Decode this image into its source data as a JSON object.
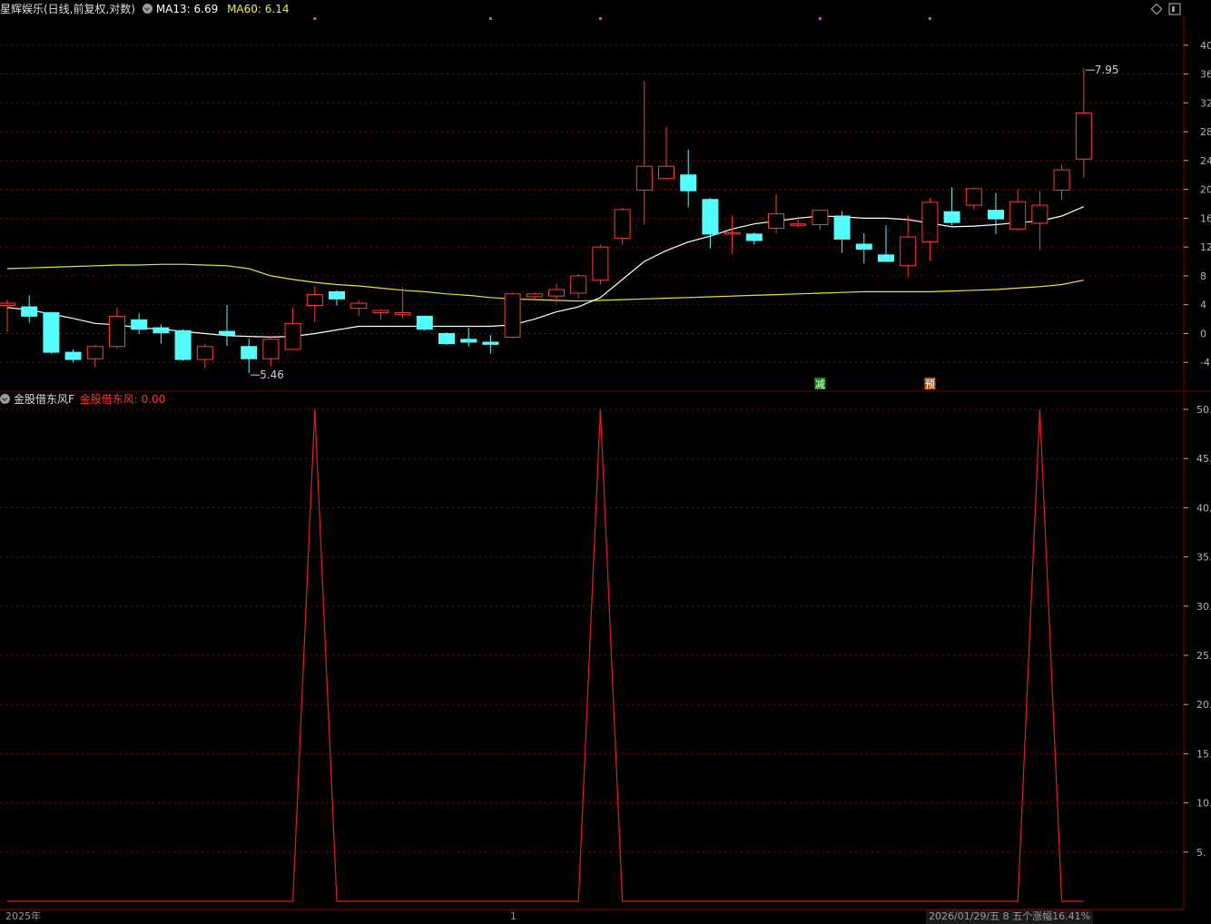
{
  "header": {
    "title": "星辉娱乐(日线,前复权,对数)",
    "ma13_label": "MA13: 6.69",
    "ma60_label": "MA60: 6.14"
  },
  "indicator": {
    "title": "金股借东风F",
    "value_label": "金股借东风: 0.00"
  },
  "footer": {
    "year_label": "2025年",
    "month_label": "1",
    "status": "2026/01/29/五 8 五个涨幅16.41%"
  },
  "colors": {
    "background": "#000000",
    "up": "#ff3c3c",
    "down": "#54fcfc",
    "ma13": "#ffffff",
    "ma60": "#e6e632",
    "indicator_line": "#e02020",
    "axis": "#b4b4b4",
    "grid": "#8c0000"
  },
  "icons": [
    "collapse-dropdown-icon",
    "diamond-icon",
    "restore-window-icon"
  ],
  "chart_data": [
    {
      "type": "candlestick",
      "title": "星辉娱乐(日线,前复权,对数)",
      "y_tick_labels": [
        "40",
        "36",
        "32",
        "28",
        "24",
        "20",
        "16",
        "12",
        "8",
        "4",
        "0",
        "-4"
      ],
      "y_ticks": [
        40,
        36,
        32,
        28,
        24,
        20,
        16,
        12,
        8,
        4,
        0,
        -4
      ],
      "ylim": [
        -8,
        44
      ],
      "grid": true,
      "annotations": [
        {
          "text": "7.95",
          "index": 49,
          "type": "high"
        },
        {
          "text": "5.46",
          "index": 11,
          "type": "low"
        }
      ],
      "signals": [
        {
          "text": "减",
          "index": 37,
          "color": "#1e7d1e"
        },
        {
          "text": "预",
          "index": 42,
          "color": "#b45a14"
        }
      ],
      "markers": [
        14,
        22,
        27,
        37,
        42
      ],
      "candles": [
        {
          "o": 3.9,
          "h": 4.7,
          "l": 0.2,
          "c": 4.2
        },
        {
          "o": 3.7,
          "h": 5.3,
          "l": 1.5,
          "c": 2.4
        },
        {
          "o": 2.9,
          "h": 3.0,
          "l": -2.8,
          "c": -2.6
        },
        {
          "o": -2.6,
          "h": -2.2,
          "l": -4.0,
          "c": -3.6
        },
        {
          "o": -3.5,
          "h": -1.6,
          "l": -4.7,
          "c": -1.8
        },
        {
          "o": -1.8,
          "h": 3.6,
          "l": -2.1,
          "c": 2.4
        },
        {
          "o": 1.9,
          "h": 2.8,
          "l": -0.1,
          "c": 0.6
        },
        {
          "o": 0.8,
          "h": 1.3,
          "l": -1.4,
          "c": 0.1
        },
        {
          "o": 0.4,
          "h": 0.6,
          "l": -3.8,
          "c": -3.6
        },
        {
          "o": -3.6,
          "h": -1.4,
          "l": -4.8,
          "c": -1.8
        },
        {
          "o": 0.3,
          "h": 4.0,
          "l": -1.7,
          "c": -0.2
        },
        {
          "o": -1.8,
          "h": -0.7,
          "l": -5.5,
          "c": -3.5
        },
        {
          "o": -3.5,
          "h": -0.3,
          "l": -4.5,
          "c": -0.8
        },
        {
          "o": -2.2,
          "h": 3.6,
          "l": -2.3,
          "c": 1.4
        },
        {
          "o": 3.9,
          "h": 6.6,
          "l": 1.6,
          "c": 5.4
        },
        {
          "o": 5.8,
          "h": 6.0,
          "l": 3.9,
          "c": 4.8
        },
        {
          "o": 3.5,
          "h": 4.6,
          "l": 2.4,
          "c": 4.2
        },
        {
          "o": 2.9,
          "h": 3.4,
          "l": 1.9,
          "c": 3.2
        },
        {
          "o": 2.6,
          "h": 6.4,
          "l": 2.1,
          "c": 2.9
        },
        {
          "o": 2.4,
          "h": 2.5,
          "l": 0.4,
          "c": 0.6
        },
        {
          "o": 0.0,
          "h": 0.2,
          "l": -1.6,
          "c": -1.4
        },
        {
          "o": -0.8,
          "h": 0.8,
          "l": -1.8,
          "c": -1.2
        },
        {
          "o": -1.2,
          "h": -0.2,
          "l": -2.8,
          "c": -1.5
        },
        {
          "o": -0.5,
          "h": 5.7,
          "l": -0.7,
          "c": 5.5
        },
        {
          "o": 5.1,
          "h": 5.7,
          "l": 4.6,
          "c": 5.5
        },
        {
          "o": 5.2,
          "h": 6.9,
          "l": 4.2,
          "c": 6.1
        },
        {
          "o": 5.6,
          "h": 8.3,
          "l": 4.9,
          "c": 8.0
        },
        {
          "o": 7.4,
          "h": 12.3,
          "l": 6.8,
          "c": 12.0
        },
        {
          "o": 13.2,
          "h": 17.4,
          "l": 12.3,
          "c": 17.2
        },
        {
          "o": 19.9,
          "h": 35.0,
          "l": 15.1,
          "c": 23.2
        },
        {
          "o": 21.5,
          "h": 28.7,
          "l": 21.3,
          "c": 23.2
        },
        {
          "o": 22.0,
          "h": 25.5,
          "l": 17.5,
          "c": 19.8
        },
        {
          "o": 18.6,
          "h": 18.8,
          "l": 11.8,
          "c": 13.8
        },
        {
          "o": 13.9,
          "h": 16.3,
          "l": 11.1,
          "c": 14.0
        },
        {
          "o": 13.8,
          "h": 14.0,
          "l": 12.3,
          "c": 12.9
        },
        {
          "o": 14.6,
          "h": 19.3,
          "l": 13.9,
          "c": 16.6
        },
        {
          "o": 15.1,
          "h": 16.2,
          "l": 14.7,
          "c": 15.2
        },
        {
          "o": 15.1,
          "h": 17.1,
          "l": 14.4,
          "c": 17.1
        },
        {
          "o": 16.3,
          "h": 17.0,
          "l": 11.2,
          "c": 13.1
        },
        {
          "o": 12.4,
          "h": 13.9,
          "l": 9.7,
          "c": 11.7
        },
        {
          "o": 10.9,
          "h": 15.0,
          "l": 10.4,
          "c": 10.0
        },
        {
          "o": 9.4,
          "h": 16.4,
          "l": 7.8,
          "c": 13.4
        },
        {
          "o": 12.7,
          "h": 18.8,
          "l": 10.1,
          "c": 18.2
        },
        {
          "o": 16.9,
          "h": 20.3,
          "l": 15.0,
          "c": 15.4
        },
        {
          "o": 17.8,
          "h": 20.3,
          "l": 17.2,
          "c": 20.1
        },
        {
          "o": 17.1,
          "h": 19.5,
          "l": 13.8,
          "c": 15.9
        },
        {
          "o": 14.5,
          "h": 20.0,
          "l": 14.3,
          "c": 18.3
        },
        {
          "o": 15.3,
          "h": 19.8,
          "l": 11.6,
          "c": 17.8
        },
        {
          "o": 19.9,
          "h": 23.4,
          "l": 18.5,
          "c": 22.7
        },
        {
          "o": 24.2,
          "h": 36.8,
          "l": 21.6,
          "c": 30.6
        }
      ],
      "ma13": [
        3.6,
        3.3,
        2.7,
        2.1,
        1.4,
        1.2,
        0.8,
        0.6,
        0.3,
        0.0,
        -0.3,
        -0.4,
        -0.5,
        -0.4,
        0.0,
        0.5,
        1.0,
        1.0,
        1.0,
        1.0,
        1.0,
        1.0,
        1.0,
        1.2,
        2.0,
        3.0,
        3.7,
        5.0,
        7.5,
        10.0,
        11.5,
        12.7,
        13.5,
        14.5,
        15.2,
        15.6,
        16.0,
        16.3,
        16.2,
        16.0,
        16.0,
        15.8,
        15.3,
        14.8,
        14.9,
        15.1,
        15.4,
        15.6,
        16.3,
        17.6
      ],
      "ma60": [
        9.0,
        9.1,
        9.2,
        9.3,
        9.4,
        9.5,
        9.5,
        9.6,
        9.6,
        9.5,
        9.4,
        9.0,
        8.0,
        7.5,
        7.1,
        6.8,
        6.6,
        6.3,
        6.0,
        5.8,
        5.5,
        5.3,
        5.0,
        4.8,
        4.7,
        4.6,
        4.5,
        4.6,
        4.7,
        4.8,
        4.9,
        5.0,
        5.1,
        5.2,
        5.3,
        5.4,
        5.5,
        5.6,
        5.7,
        5.8,
        5.8,
        5.8,
        5.8,
        5.9,
        6.0,
        6.1,
        6.3,
        6.5,
        6.8,
        7.4
      ]
    },
    {
      "type": "line",
      "title": "金股借东风F",
      "series": [
        {
          "name": "金股借东风",
          "values": [
            0,
            0,
            0,
            0,
            0,
            0,
            0,
            0,
            0,
            0,
            0,
            0,
            0,
            0,
            50,
            0,
            0,
            0,
            0,
            0,
            0,
            0,
            0,
            0,
            0,
            0,
            0,
            50,
            0,
            0,
            0,
            0,
            0,
            0,
            0,
            0,
            0,
            0,
            0,
            0,
            0,
            0,
            0,
            0,
            0,
            0,
            0,
            50,
            0,
            0
          ]
        }
      ],
      "y_tick_labels": [
        "50.",
        "45.",
        "40.",
        "35.",
        "30.",
        "25.",
        "20.",
        "15.",
        "10.",
        "5."
      ],
      "y_ticks": [
        50,
        45,
        40,
        35,
        30,
        25,
        20,
        15,
        10,
        5
      ],
      "ylim": [
        0,
        50
      ],
      "grid": true
    }
  ]
}
